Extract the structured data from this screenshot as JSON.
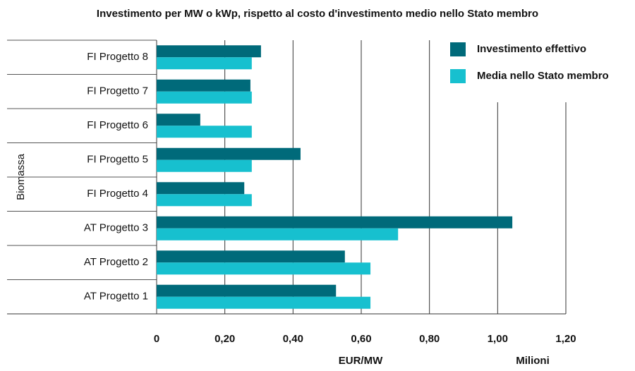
{
  "chart_data": {
    "type": "hbar",
    "title": "Investimento per MW o kWp, rispetto al costo d'investimento medio nello Stato membro",
    "group_label": "Biomassa",
    "categories": [
      "FI Progetto 8",
      "FI Progetto 7",
      "FI Progetto 6",
      "FI Progetto 5",
      "FI Progetto 4",
      "AT Progetto 3",
      "AT Progetto 2",
      "AT Progetto 1"
    ],
    "series": [
      {
        "name": "Investimento effettivo",
        "color": "#006a7a",
        "values": [
          0.306,
          0.275,
          0.128,
          0.422,
          0.257,
          1.043,
          0.552,
          0.526
        ]
      },
      {
        "name": "Media nello Stato membro",
        "color": "#17c0cf",
        "values": [
          0.279,
          0.279,
          0.279,
          0.279,
          0.279,
          0.708,
          0.627,
          0.627
        ]
      }
    ],
    "xlabel": "EUR/MW",
    "x_unit": "Milioni",
    "xlim": [
      0,
      1.2
    ],
    "xticks": [
      0,
      {
        "value": 0.2,
        "label": "0,20"
      },
      {
        "value": 0.4,
        "label": "0,40"
      },
      {
        "value": 0.6,
        "label": "0,60"
      },
      {
        "value": 0.8,
        "label": "0,80"
      },
      {
        "value": 1.0,
        "label": "1,00"
      },
      {
        "value": 1.2,
        "label": "1,20"
      }
    ],
    "grid": true,
    "legend": "upper right"
  }
}
